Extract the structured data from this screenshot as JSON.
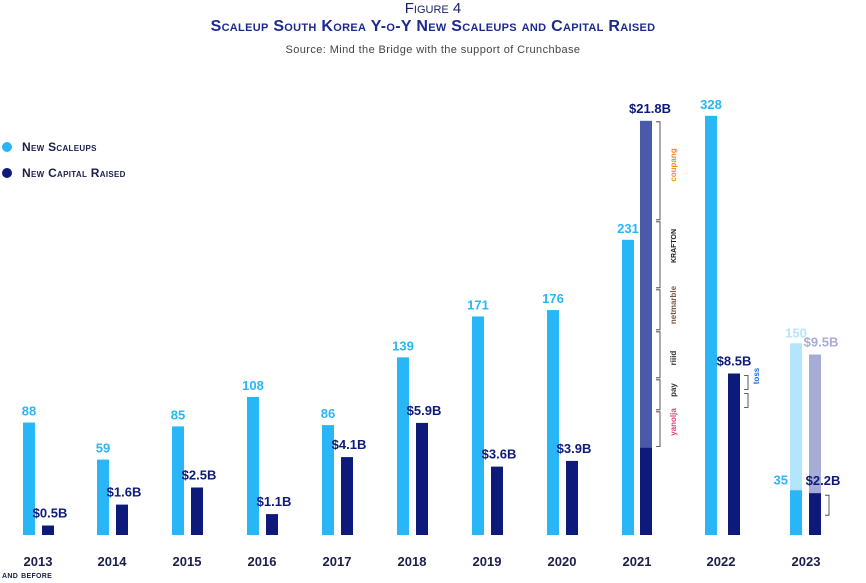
{
  "figure_label": "Figure 4",
  "chart_data": {
    "type": "bar",
    "title": "Scaleup South Korea Y-o-Y New Scaleups and Capital Raised",
    "subtitle": "Source: Mind the Bridge with the support of Crunchbase",
    "categories": [
      "2013",
      "2014",
      "2015",
      "2016",
      "2017",
      "2018",
      "2019",
      "2020",
      "2021",
      "2022",
      "2023"
    ],
    "category_note": "and before",
    "series": [
      {
        "name": "New Scaleups",
        "color": "#29b6f6",
        "values": [
          88,
          59,
          85,
          108,
          86,
          139,
          171,
          176,
          231,
          328,
          35
        ],
        "labels": [
          "88",
          "59",
          "85",
          "108",
          "86",
          "139",
          "171",
          "176",
          "231",
          "328",
          "35"
        ],
        "extra_2023": {
          "value": 150,
          "label": "150",
          "color": "#b3e5fc"
        }
      },
      {
        "name": "New Capital Raised",
        "color": "#0d1a7a",
        "unit": "$B",
        "values": [
          0.5,
          1.6,
          2.5,
          1.1,
          4.1,
          5.9,
          3.6,
          3.9,
          21.8,
          8.5,
          2.2
        ],
        "labels": [
          "$0.5B",
          "$1.6B",
          "$2.5B",
          "$1.1B",
          "$4.1B",
          "$5.9B",
          "$3.6B",
          "$3.9B",
          "$21.8B",
          "$8.5B",
          "$2.2B"
        ],
        "extra_2023": {
          "value": 9.5,
          "label": "$9.5B",
          "color": "#a7acd6"
        }
      }
    ],
    "highlight_2021_capital": {
      "base_value": 4.6,
      "color": "#4a5aab"
    },
    "company_labels_2021": [
      "coupang",
      "KRAFTON",
      "netmarble",
      "riiid",
      "pay",
      "yanolja"
    ],
    "company_labels_2022": [
      "toss"
    ],
    "legend_position": "top-left",
    "grid": false
  }
}
